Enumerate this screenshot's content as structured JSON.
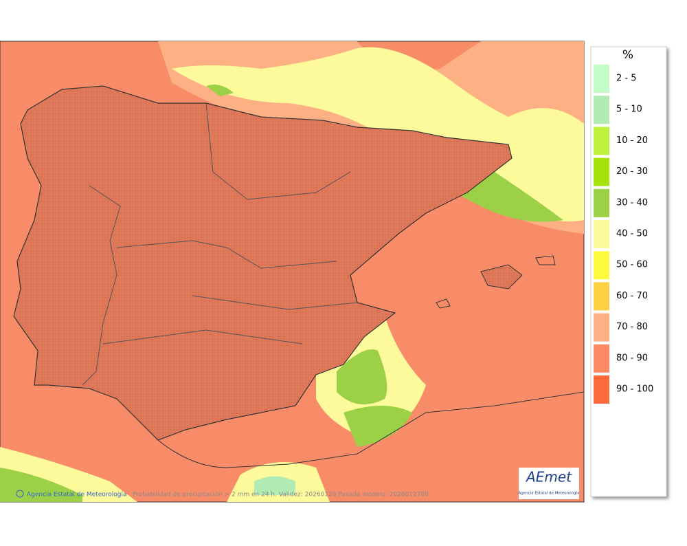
{
  "legend": {
    "title": "%",
    "items": [
      {
        "label": "2 - 5",
        "color": "#c4fcc8"
      },
      {
        "label": "5 - 10",
        "color": "#b2ecb4"
      },
      {
        "label": "10 - 20",
        "color": "#bef23c"
      },
      {
        "label": "20 - 30",
        "color": "#a6e20a"
      },
      {
        "label": "30 - 40",
        "color": "#9cd046"
      },
      {
        "label": "40 - 50",
        "color": "#fcfa9a"
      },
      {
        "label": "50 - 60",
        "color": "#fcfa3c"
      },
      {
        "label": "60 - 70",
        "color": "#fcd244"
      },
      {
        "label": "70 - 80",
        "color": "#fcb084"
      },
      {
        "label": "80 - 90",
        "color": "#fc8a64"
      },
      {
        "label": "90 - 100",
        "color": "#fc6a3c"
      }
    ]
  },
  "credit": "Agencia Estatal de Meteorología",
  "caption": "Probabilidad de precipitación > 2 mm en 24 h. Validez: 20260128 Pasada modelo: 2026012700",
  "logo": {
    "text": "AEmet",
    "subtitle": "Agencia Estatal de Meteorología"
  }
}
